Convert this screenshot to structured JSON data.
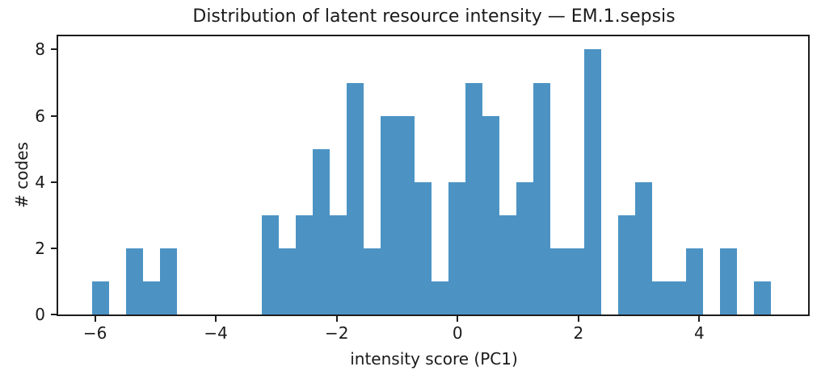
{
  "chart_data": {
    "type": "bar",
    "subtype": "histogram",
    "title": "Distribution of latent resource intensity — EM.1.sepsis",
    "xlabel": "intensity score (PC1)",
    "ylabel": "# codes",
    "bin_start": -6.045,
    "bin_width": 0.2808,
    "counts": [
      1,
      0,
      2,
      1,
      2,
      0,
      0,
      0,
      0,
      0,
      3,
      2,
      3,
      5,
      3,
      7,
      2,
      6,
      6,
      4,
      1,
      4,
      7,
      6,
      3,
      4,
      7,
      2,
      2,
      8,
      0,
      3,
      4,
      1,
      1,
      2,
      0,
      2,
      0,
      1
    ],
    "total_codes": 105,
    "xlim": [
      -6.61,
      5.8
    ],
    "ylim": [
      0,
      8.4
    ],
    "xticks": [
      -6,
      -4,
      -2,
      0,
      2,
      4
    ],
    "yticks": [
      0,
      2,
      4,
      6,
      8
    ],
    "grid": false,
    "legend": null,
    "colors": {
      "bar": "#4c93c4",
      "spine": "#1c1c1c",
      "text": "#1a1a1a",
      "background": "#ffffff"
    }
  }
}
